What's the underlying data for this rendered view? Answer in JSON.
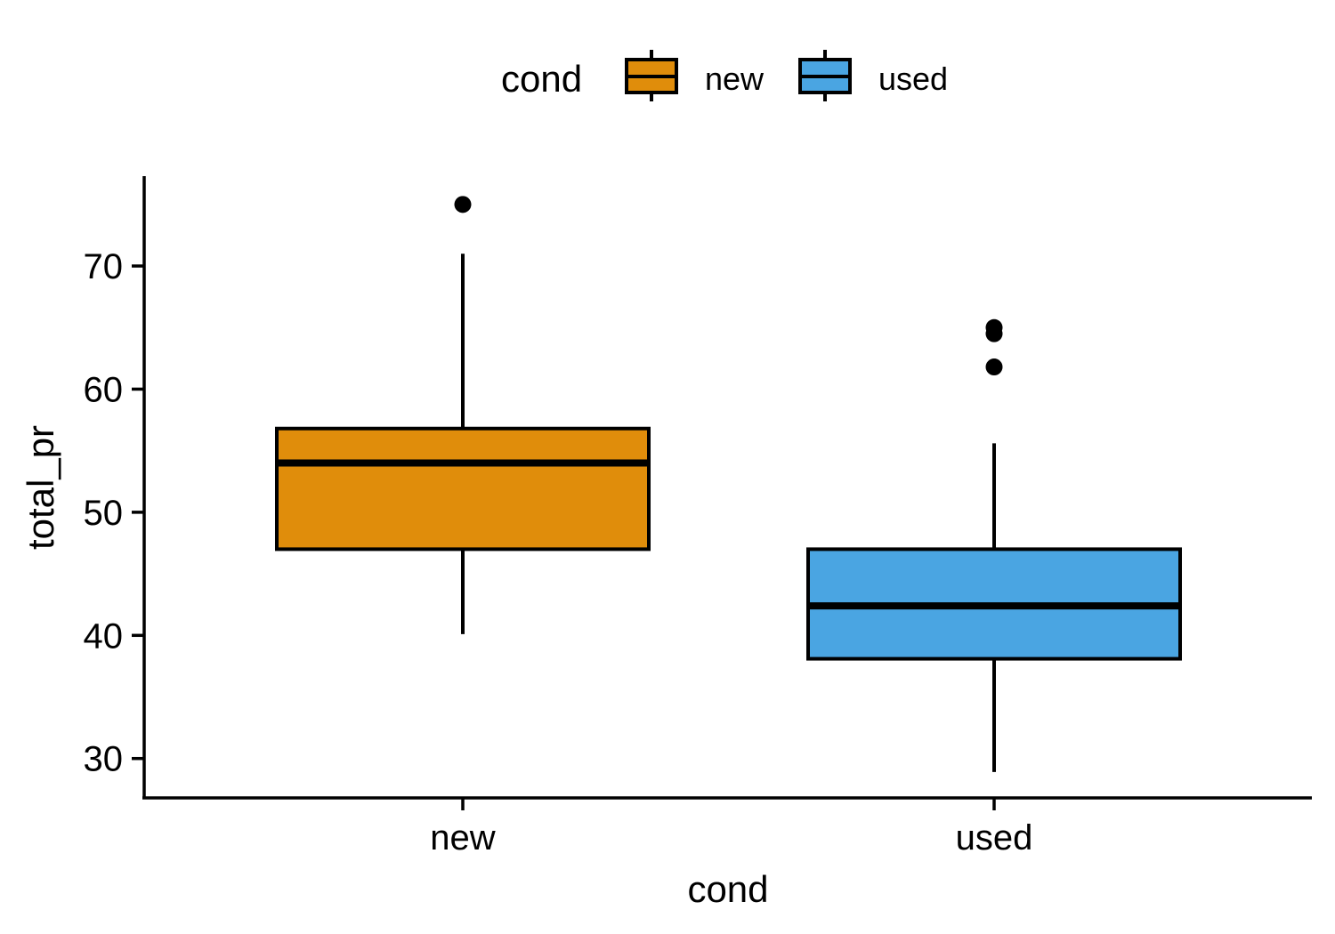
{
  "chart_data": {
    "type": "box",
    "title": "",
    "xlabel": "cond",
    "ylabel": "total_pr",
    "ylim": [
      26.8,
      77.3
    ],
    "yticks": [
      30,
      40,
      50,
      60,
      70
    ],
    "ytick_labels": [
      "30",
      "40",
      "50",
      "60",
      "70"
    ],
    "grid": false,
    "legend": {
      "title": "cond",
      "position": "top",
      "entries": [
        "new",
        "used"
      ]
    },
    "categories": [
      "new",
      "used"
    ],
    "series": [
      {
        "name": "new",
        "color": "#E08D0B",
        "whisker_low": 40.1,
        "q1": 47.0,
        "median": 54.0,
        "q3": 56.8,
        "whisker_high": 71.0,
        "outliers": [
          75.0
        ]
      },
      {
        "name": "used",
        "color": "#4AA5E2",
        "whisker_low": 28.9,
        "q1": 38.1,
        "median": 42.4,
        "q3": 47.0,
        "whisker_high": 55.6,
        "outliers": [
          65.0,
          64.5,
          61.8
        ]
      }
    ]
  }
}
